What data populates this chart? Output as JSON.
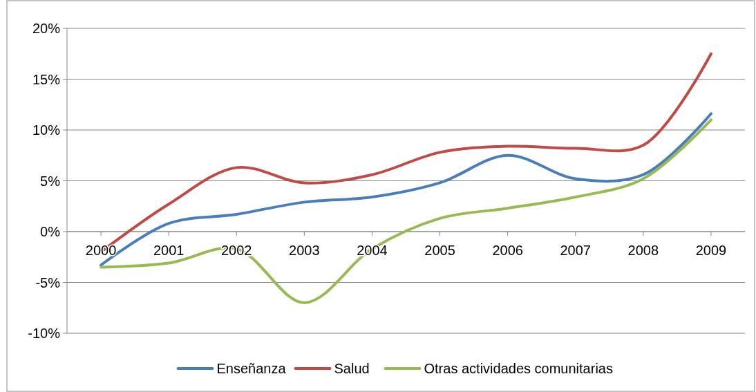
{
  "chart_data": {
    "type": "line",
    "categories": [
      "2000",
      "2001",
      "2002",
      "2003",
      "2004",
      "2005",
      "2006",
      "2007",
      "2008",
      "2009"
    ],
    "series": [
      {
        "name": "Enseñanza",
        "color": "#4a7ebb",
        "values": [
          -3.3,
          0.8,
          1.7,
          2.9,
          3.4,
          4.8,
          7.5,
          5.2,
          5.6,
          11.6
        ]
      },
      {
        "name": "Salud",
        "color": "#be4b48",
        "values": [
          -2.0,
          2.7,
          6.3,
          4.8,
          5.6,
          7.8,
          8.4,
          8.2,
          8.5,
          17.5
        ]
      },
      {
        "name": "Otras actividades comunitarias",
        "color": "#98b954",
        "values": [
          -3.5,
          -3.1,
          -1.7,
          -7.0,
          -1.7,
          1.3,
          2.3,
          3.4,
          5.2,
          11.0
        ]
      }
    ],
    "ylim": [
      -10,
      20
    ],
    "yticks": [
      {
        "value": -10,
        "label": "-10%"
      },
      {
        "value": -5,
        "label": "-5%"
      },
      {
        "value": 0,
        "label": "0%"
      },
      {
        "value": 5,
        "label": "5%"
      },
      {
        "value": 10,
        "label": "10%"
      },
      {
        "value": 15,
        "label": "15%"
      },
      {
        "value": 20,
        "label": "20%"
      }
    ],
    "grid": "y",
    "legend": "bottom",
    "line_style": "solid"
  }
}
